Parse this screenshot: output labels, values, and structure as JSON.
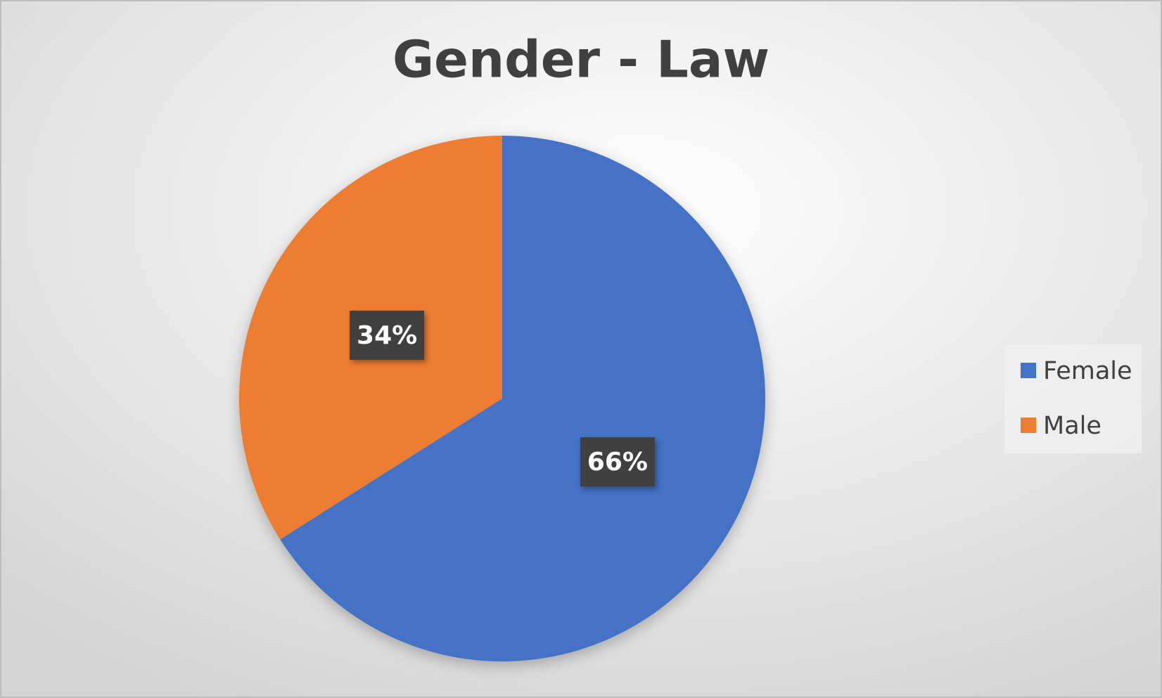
{
  "chart_data": {
    "type": "pie",
    "title": "Gender - Law",
    "categories": [
      "Female",
      "Male"
    ],
    "values": [
      66,
      34
    ],
    "value_labels": [
      "66%",
      "34%"
    ],
    "colors": [
      "#4472c4",
      "#ed7d31"
    ],
    "legend": "right"
  }
}
